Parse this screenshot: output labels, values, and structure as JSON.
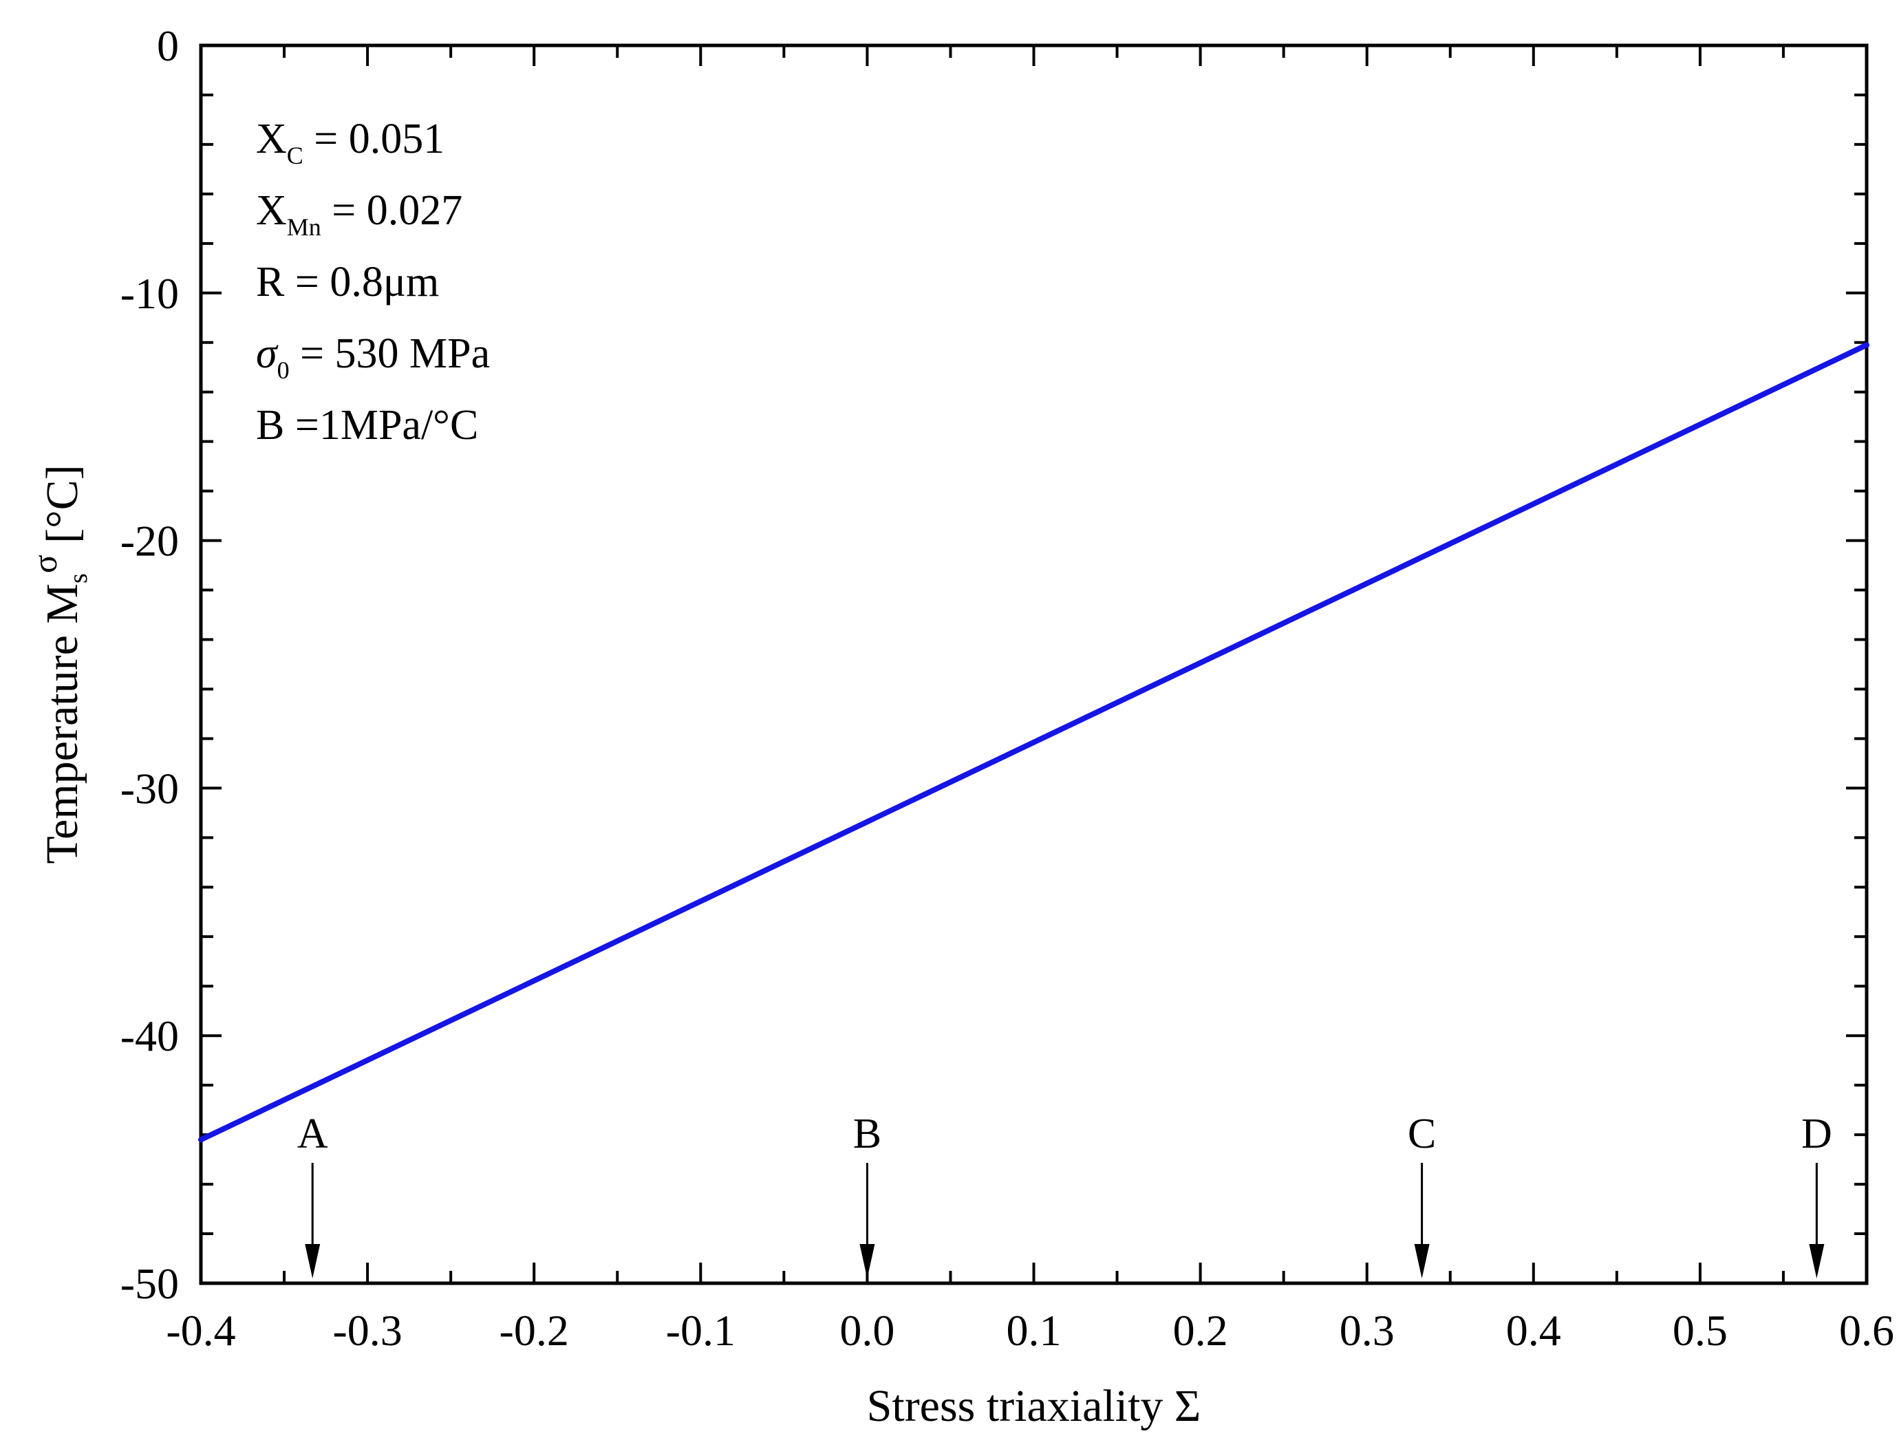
{
  "chart_data": {
    "type": "line",
    "xlabel": "Stress triaxiality Σ",
    "ylabel": {
      "main": "Temperature M",
      "sub": "s",
      "sup": "σ",
      "unit": "[°C]"
    },
    "xlim": [
      -0.4,
      0.6
    ],
    "ylim": [
      -50,
      0
    ],
    "xticks": [
      -0.4,
      -0.3,
      -0.2,
      -0.1,
      0.0,
      0.1,
      0.2,
      0.3,
      0.4,
      0.5,
      0.6
    ],
    "xtick_labels": [
      "-0.4",
      "-0.3",
      "-0.2",
      "-0.1",
      "0.0",
      "0.1",
      "0.2",
      "0.3",
      "0.4",
      "0.5",
      "0.6"
    ],
    "yticks": [
      0,
      -10,
      -20,
      -30,
      -40,
      -50
    ],
    "ytick_labels": [
      "0",
      "-10",
      "-20",
      "-30",
      "-40",
      "-50"
    ],
    "grid": false,
    "series": [
      {
        "color": "#1515e6",
        "x": [
          -0.4,
          0.6
        ],
        "y": [
          -44.2,
          -12.1
        ]
      }
    ],
    "markers": [
      {
        "label": "A",
        "x": -0.333
      },
      {
        "label": "B",
        "x": 0.0
      },
      {
        "label": "C",
        "x": 0.333
      },
      {
        "label": "D",
        "x": 0.57
      }
    ],
    "annotations": [
      {
        "main": "X",
        "sub": "C",
        "rest": " = 0.051"
      },
      {
        "main": "X",
        "sub": "Mn",
        "rest": " = 0.027"
      },
      {
        "main": "R = 0.8μm",
        "sub": "",
        "rest": ""
      },
      {
        "main": "σ",
        "sub": "0",
        "rest": " = 530 MPa"
      },
      {
        "main": "B =1MPa/°C",
        "sub": "",
        "rest": ""
      }
    ]
  }
}
